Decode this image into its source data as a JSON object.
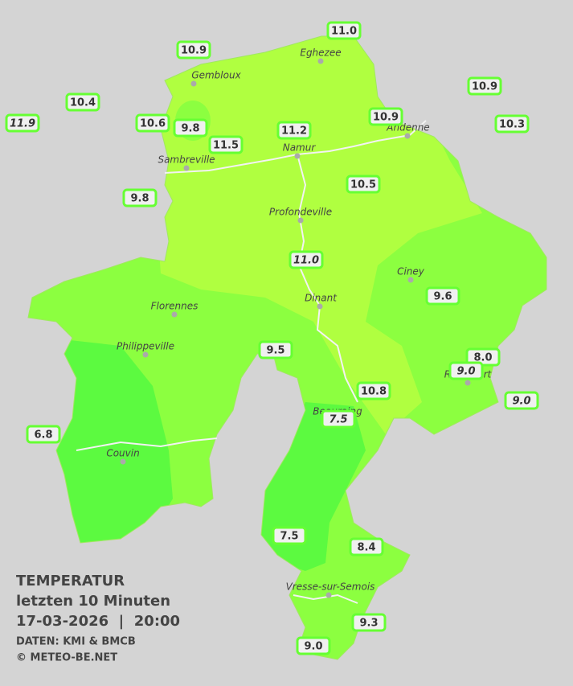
{
  "title_lines": [
    "TEMPERATUR",
    "letzten 10 Minuten",
    "17-03-2026  |  20:00"
  ],
  "credits": [
    "DATEN: KMI & BMCB",
    "© METEO-BE.NET"
  ],
  "cities": [
    "Eghezee",
    "Gembloux",
    "Andenne",
    "Namur",
    "Sambreville",
    "Profondeville",
    "Ciney",
    "Dinant",
    "Florennes",
    "Philippeville",
    "Couvin",
    "Vresse-sur-Semois",
    "Beauraing",
    "Rochefort"
  ],
  "stations": [
    {
      "value": "11.0"
    },
    {
      "value": "10.9"
    },
    {
      "value": "10.4"
    },
    {
      "value": "11.9",
      "italic": true
    },
    {
      "value": "10.6"
    },
    {
      "value": "9.8"
    },
    {
      "value": "11.5"
    },
    {
      "value": "11.2"
    },
    {
      "value": "10.9"
    },
    {
      "value": "10.9"
    },
    {
      "value": "10.3"
    },
    {
      "value": "10.5"
    },
    {
      "value": "9.8"
    },
    {
      "value": "11.0",
      "italic": true
    },
    {
      "value": "9.6"
    },
    {
      "value": "9.5"
    },
    {
      "value": "8.0"
    },
    {
      "value": "9.0",
      "italic": true
    },
    {
      "value": "9.0",
      "italic": true
    },
    {
      "value": "10.8"
    },
    {
      "value": "7.5",
      "italic": true
    },
    {
      "value": "6.8"
    },
    {
      "value": "7.5"
    },
    {
      "value": "8.4"
    },
    {
      "value": "9.3"
    },
    {
      "value": "9.0"
    }
  ]
}
